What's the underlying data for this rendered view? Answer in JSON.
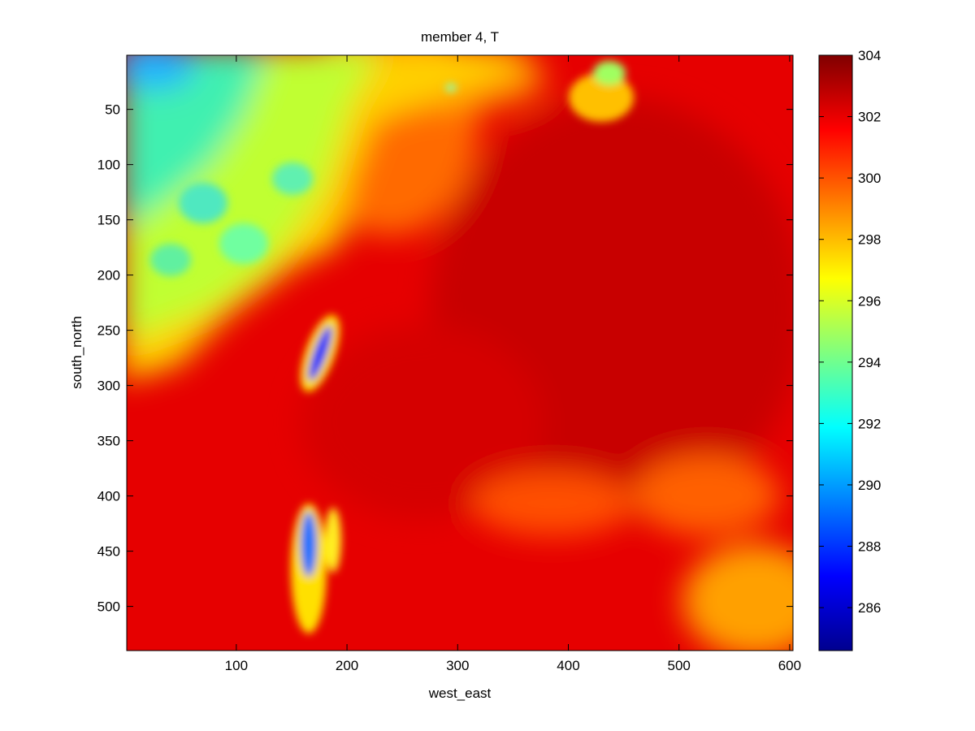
{
  "chart_data": {
    "type": "heatmap",
    "title": "member 4, T",
    "xlabel": "west_east",
    "ylabel": "south_north",
    "xlim": [
      1,
      603
    ],
    "ylim": [
      1,
      540
    ],
    "y_reversed": true,
    "xticks": [
      100,
      200,
      300,
      400,
      500,
      600
    ],
    "yticks": [
      50,
      100,
      150,
      200,
      250,
      300,
      350,
      400,
      450,
      500
    ],
    "colormap": "jet",
    "clim": [
      284.6,
      304
    ],
    "colorbar_ticks": [
      286,
      288,
      290,
      292,
      294,
      296,
      298,
      300,
      302,
      304
    ],
    "grid": false,
    "features": [
      {
        "x": 25,
        "y": 20,
        "value": 292.0
      },
      {
        "x": 70,
        "y": 80,
        "value": 294.5
      },
      {
        "x": 140,
        "y": 150,
        "value": 295.0
      },
      {
        "x": 60,
        "y": 220,
        "value": 295.5
      },
      {
        "x": 250,
        "y": 30,
        "value": 296.8
      },
      {
        "x": 330,
        "y": 40,
        "value": 298.5
      },
      {
        "x": 270,
        "y": 200,
        "value": 300.0
      },
      {
        "x": 178,
        "y": 265,
        "value": 287.0
      },
      {
        "x": 165,
        "y": 450,
        "value": 288.5
      },
      {
        "x": 440,
        "y": 40,
        "value": 296.0
      },
      {
        "x": 100,
        "y": 400,
        "value": 301.5
      },
      {
        "x": 480,
        "y": 220,
        "value": 302.8
      },
      {
        "x": 420,
        "y": 500,
        "value": 301.0
      },
      {
        "x": 560,
        "y": 470,
        "value": 299.0
      }
    ]
  }
}
